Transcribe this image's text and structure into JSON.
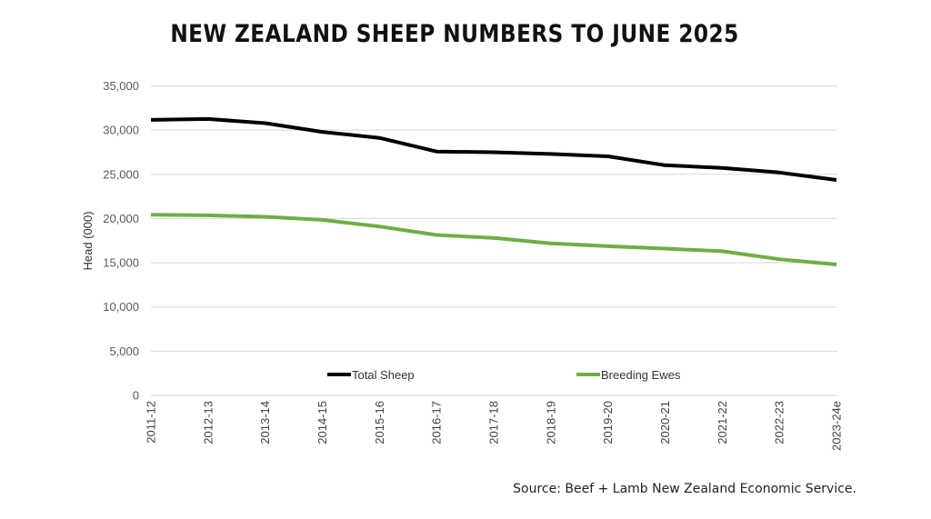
{
  "chart_data": {
    "type": "line",
    "title": "NEW ZEALAND SHEEP NUMBERS TO JUNE 2025",
    "xlabel": "",
    "ylabel": "Head (000)",
    "ylim": [
      0,
      35000
    ],
    "yticks": [
      0,
      5000,
      10000,
      15000,
      20000,
      25000,
      30000,
      35000
    ],
    "ytick_labels": [
      "0",
      "5,000",
      "10,000",
      "15,000",
      "20,000",
      "25,000",
      "30,000",
      "35,000"
    ],
    "grid": true,
    "legend_position": "bottom-inside",
    "categories": [
      "2011-12",
      "2012-13",
      "2013-14",
      "2014-15",
      "2015-16",
      "2016-17",
      "2017-18",
      "2018-19",
      "2019-20",
      "2020-21",
      "2021-22",
      "2022-23",
      "2023-24e"
    ],
    "series": [
      {
        "name": "Total Sheep",
        "color": "#000000",
        "values": [
          31160,
          31260,
          30790,
          29800,
          29120,
          27580,
          27500,
          27300,
          27030,
          26030,
          25730,
          25200,
          24360
        ]
      },
      {
        "name": "Breeding Ewes",
        "color": "#70AD47",
        "values": [
          20430,
          20360,
          20200,
          19850,
          19100,
          18140,
          17800,
          17200,
          16870,
          16600,
          16300,
          15400,
          14800
        ]
      }
    ],
    "source": "Source: Beef + Lamb New Zealand Economic Service."
  },
  "colors": {
    "grid": "#D9D9D9",
    "axis_text": "#595959"
  }
}
